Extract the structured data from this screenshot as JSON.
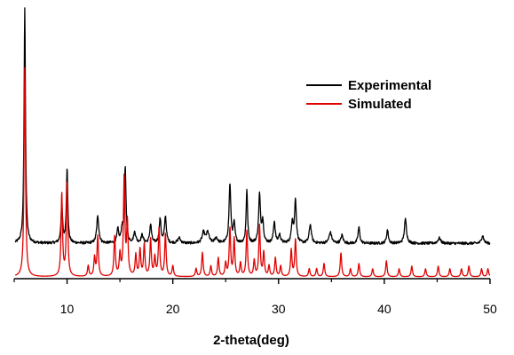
{
  "chart_data": {
    "type": "line",
    "title": "",
    "xlabel": "2-theta(deg)",
    "ylabel": "",
    "xlim": [
      5,
      50
    ],
    "ylim": [
      0,
      100
    ],
    "x_ticks": [
      10,
      20,
      30,
      40,
      50
    ],
    "x_tick_labels": [
      "10",
      "20",
      "30",
      "40",
      "50"
    ],
    "grid": false,
    "legend": "top-right",
    "series": [
      {
        "name": "Experimental",
        "color": "#000000",
        "baseline": 12.5,
        "peaks": [
          [
            6.0,
            87.5,
            0.08
          ],
          [
            9.5,
            14.0,
            0.09
          ],
          [
            10.0,
            28.0,
            0.08
          ],
          [
            12.9,
            10.0,
            0.12
          ],
          [
            14.8,
            5.0,
            0.1
          ],
          [
            15.2,
            5.0,
            0.1
          ],
          [
            15.5,
            28.0,
            0.09
          ],
          [
            16.4,
            4.0,
            0.12
          ],
          [
            17.1,
            3.0,
            0.12
          ],
          [
            17.9,
            7.0,
            0.1
          ],
          [
            18.8,
            9.0,
            0.1
          ],
          [
            19.3,
            10.0,
            0.1
          ],
          [
            20.6,
            2.0,
            0.15
          ],
          [
            22.9,
            4.0,
            0.15
          ],
          [
            23.3,
            4.0,
            0.15
          ],
          [
            24.1,
            2.0,
            0.15
          ],
          [
            25.4,
            22.0,
            0.1
          ],
          [
            25.8,
            7.0,
            0.1
          ],
          [
            27.0,
            20.0,
            0.08
          ],
          [
            28.2,
            18.0,
            0.1
          ],
          [
            28.5,
            8.0,
            0.1
          ],
          [
            29.6,
            8.0,
            0.1
          ],
          [
            30.1,
            3.0,
            0.12
          ],
          [
            31.3,
            8.0,
            0.1
          ],
          [
            31.6,
            16.0,
            0.1
          ],
          [
            33.0,
            7.0,
            0.12
          ],
          [
            34.9,
            4.0,
            0.15
          ],
          [
            36.0,
            3.0,
            0.12
          ],
          [
            37.6,
            6.0,
            0.1
          ],
          [
            40.3,
            5.0,
            0.1
          ],
          [
            42.0,
            9.0,
            0.12
          ],
          [
            45.2,
            2.0,
            0.15
          ],
          [
            49.3,
            3.0,
            0.12
          ]
        ]
      },
      {
        "name": "Simulated",
        "color": "#e00000",
        "baseline": 0,
        "peaks": [
          [
            6.0,
            78.0,
            0.08
          ],
          [
            9.5,
            31.0,
            0.08
          ],
          [
            10.0,
            35.0,
            0.08
          ],
          [
            12.0,
            4.0,
            0.08
          ],
          [
            12.6,
            7.0,
            0.08
          ],
          [
            12.9,
            15.0,
            0.08
          ],
          [
            14.5,
            15.0,
            0.08
          ],
          [
            15.0,
            8.0,
            0.08
          ],
          [
            15.4,
            37.0,
            0.08
          ],
          [
            15.7,
            20.0,
            0.08
          ],
          [
            16.5,
            8.0,
            0.08
          ],
          [
            16.9,
            10.0,
            0.08
          ],
          [
            17.3,
            12.0,
            0.08
          ],
          [
            17.9,
            14.0,
            0.08
          ],
          [
            18.3,
            7.0,
            0.08
          ],
          [
            18.7,
            18.0,
            0.08
          ],
          [
            19.3,
            16.0,
            0.08
          ],
          [
            20.0,
            4.0,
            0.08
          ],
          [
            22.2,
            3.0,
            0.08
          ],
          [
            22.8,
            9.0,
            0.08
          ],
          [
            23.6,
            4.0,
            0.08
          ],
          [
            24.3,
            7.0,
            0.08
          ],
          [
            25.0,
            5.0,
            0.08
          ],
          [
            25.4,
            18.0,
            0.08
          ],
          [
            25.8,
            14.0,
            0.08
          ],
          [
            26.4,
            5.0,
            0.08
          ],
          [
            27.0,
            17.0,
            0.08
          ],
          [
            27.7,
            6.0,
            0.08
          ],
          [
            28.2,
            19.0,
            0.08
          ],
          [
            28.6,
            9.0,
            0.08
          ],
          [
            29.1,
            4.0,
            0.08
          ],
          [
            29.7,
            7.0,
            0.08
          ],
          [
            30.2,
            4.0,
            0.08
          ],
          [
            31.2,
            10.0,
            0.08
          ],
          [
            31.6,
            14.0,
            0.08
          ],
          [
            32.9,
            3.0,
            0.08
          ],
          [
            33.6,
            3.0,
            0.08
          ],
          [
            34.3,
            5.0,
            0.08
          ],
          [
            35.9,
            9.0,
            0.08
          ],
          [
            36.8,
            3.0,
            0.08
          ],
          [
            37.6,
            5.0,
            0.08
          ],
          [
            38.9,
            3.0,
            0.08
          ],
          [
            40.2,
            6.0,
            0.08
          ],
          [
            41.4,
            3.0,
            0.08
          ],
          [
            42.6,
            4.0,
            0.08
          ],
          [
            43.9,
            3.0,
            0.08
          ],
          [
            45.1,
            4.0,
            0.08
          ],
          [
            46.2,
            3.0,
            0.08
          ],
          [
            47.3,
            3.0,
            0.08
          ],
          [
            48.0,
            4.0,
            0.08
          ],
          [
            49.2,
            3.0,
            0.08
          ],
          [
            49.8,
            3.0,
            0.08
          ]
        ]
      }
    ]
  }
}
